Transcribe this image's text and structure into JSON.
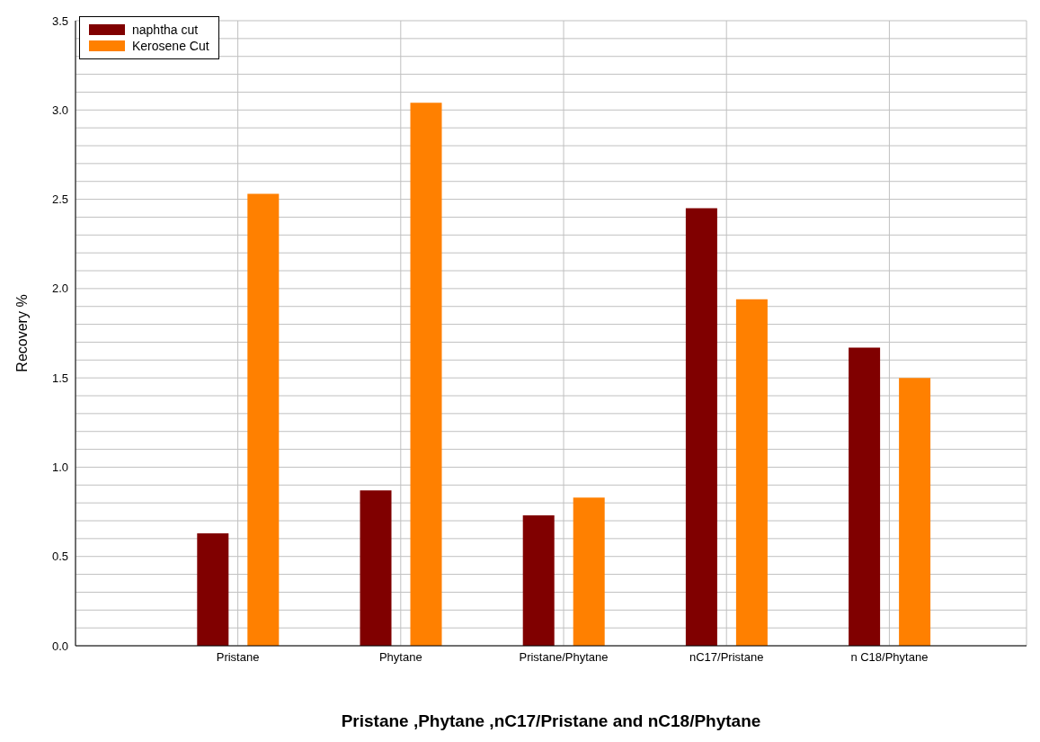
{
  "chart_data": {
    "type": "bar",
    "xlabel": "Pristane ,Phytane ,nC17/Pristane and nC18/Phytane",
    "ylabel": "Recovery %",
    "categories": [
      "Pristane",
      "Phytane",
      "Pristane/Phytane",
      "nC17/Pristane",
      "n C18/Phytane"
    ],
    "series": [
      {
        "name": "naphtha cut",
        "color": "#800000",
        "values": [
          0.63,
          0.87,
          0.73,
          2.45,
          1.67
        ]
      },
      {
        "name": "Kerosene Cut",
        "color": "#ff8000",
        "values": [
          2.53,
          3.04,
          0.83,
          1.94,
          1.5
        ]
      }
    ],
    "ylim": [
      0,
      3.5
    ],
    "yticks": [
      {
        "value": 0,
        "label": "0.0"
      },
      {
        "value": 0.1,
        "label": null
      },
      {
        "value": 0.2,
        "label": null
      },
      {
        "value": 0.3,
        "label": null
      },
      {
        "value": 0.4,
        "label": null
      },
      {
        "value": 0.5,
        "label": "0.5"
      },
      {
        "value": 0.6,
        "label": null
      },
      {
        "value": 0.7,
        "label": null
      },
      {
        "value": 0.8,
        "label": null
      },
      {
        "value": 0.9,
        "label": null
      },
      {
        "value": 1,
        "label": "1.0"
      },
      {
        "value": 1.1,
        "label": null
      },
      {
        "value": 1.2,
        "label": null
      },
      {
        "value": 1.3,
        "label": null
      },
      {
        "value": 1.4,
        "label": null
      },
      {
        "value": 1.5,
        "label": "1.5"
      },
      {
        "value": 1.6,
        "label": null
      },
      {
        "value": 1.7,
        "label": null
      },
      {
        "value": 1.8,
        "label": null
      },
      {
        "value": 1.9,
        "label": null
      },
      {
        "value": 2,
        "label": "2.0"
      },
      {
        "value": 2.1,
        "label": null
      },
      {
        "value": 2.2,
        "label": null
      },
      {
        "value": 2.3,
        "label": null
      },
      {
        "value": 2.4,
        "label": null
      },
      {
        "value": 2.5,
        "label": "2.5"
      },
      {
        "value": 2.6,
        "label": null
      },
      {
        "value": 2.7,
        "label": null
      },
      {
        "value": 2.8,
        "label": null
      },
      {
        "value": 2.9,
        "label": null
      },
      {
        "value": 3,
        "label": "3.0"
      },
      {
        "value": 3.1,
        "label": null
      },
      {
        "value": 3.2,
        "label": null
      },
      {
        "value": 3.3,
        "label": null
      },
      {
        "value": 3.4,
        "label": null
      },
      {
        "value": 3.5,
        "label": "3.5"
      }
    ],
    "grid": true,
    "legend": "top left"
  }
}
